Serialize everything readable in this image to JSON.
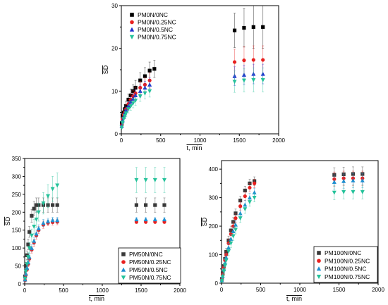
{
  "chart_data": [
    {
      "type": "scatter",
      "title": "",
      "xlabel": "t, min",
      "ylabel": "SD",
      "xlim": [
        0,
        2000
      ],
      "ylim": [
        0,
        30
      ],
      "xticks": [
        "0",
        "500",
        "1000",
        "1500",
        "2000"
      ],
      "yticks": [
        "0",
        "10",
        "20",
        "30"
      ],
      "error_bars": true,
      "legend_position": "top-left",
      "series": [
        {
          "name": "PM0N/0NC",
          "color": "#000000",
          "marker": "square",
          "x": [
            5,
            15,
            30,
            45,
            60,
            90,
            120,
            150,
            180,
            240,
            300,
            360,
            420,
            1440,
            1560,
            1680,
            1800
          ],
          "y": [
            2.5,
            4.2,
            5.0,
            5.8,
            6.5,
            8.0,
            9.0,
            10.0,
            10.8,
            12.5,
            13.5,
            14.8,
            15.2,
            24.2,
            24.8,
            25.0,
            25.0
          ],
          "err": [
            0.5,
            0.8,
            1.0,
            1.0,
            1.2,
            1.3,
            1.5,
            1.5,
            1.7,
            1.8,
            2.0,
            2.0,
            2.0,
            4.0,
            4.5,
            5.0,
            5.0
          ]
        },
        {
          "name": "PM0N/0.25NC",
          "color": "#e8201f",
          "marker": "circle",
          "x": [
            5,
            15,
            30,
            45,
            60,
            90,
            120,
            150,
            180,
            240,
            300,
            360,
            1440,
            1560,
            1680,
            1800
          ],
          "y": [
            2.0,
            3.5,
            4.5,
            5.0,
            5.8,
            7.0,
            8.0,
            8.8,
            9.5,
            10.8,
            11.5,
            12.5,
            16.8,
            17.2,
            17.3,
            17.3
          ],
          "err": [
            0.4,
            0.6,
            0.8,
            0.9,
            1.0,
            1.1,
            1.2,
            1.3,
            1.4,
            1.5,
            1.6,
            1.8,
            3.0,
            3.2,
            3.3,
            3.3
          ]
        },
        {
          "name": "PM0N/0.5NC",
          "color": "#1f2fd1",
          "marker": "triangle-up",
          "x": [
            5,
            15,
            30,
            45,
            60,
            90,
            120,
            150,
            180,
            240,
            300,
            360,
            1440,
            1560,
            1680,
            1800
          ],
          "y": [
            1.8,
            3.0,
            4.0,
            4.8,
            5.5,
            6.5,
            7.5,
            8.2,
            9.0,
            10.0,
            10.8,
            11.5,
            13.5,
            13.8,
            14.0,
            14.0
          ],
          "err": [
            0.4,
            0.6,
            0.7,
            0.8,
            0.9,
            1.0,
            1.1,
            1.2,
            1.3,
            1.4,
            1.5,
            1.6,
            2.2,
            2.3,
            2.3,
            2.3
          ]
        },
        {
          "name": "PM0N/0.75NC",
          "color": "#24c29a",
          "marker": "triangle-down",
          "x": [
            5,
            15,
            30,
            45,
            60,
            90,
            120,
            150,
            180,
            240,
            300,
            360,
            1440,
            1560,
            1680,
            1800
          ],
          "y": [
            1.5,
            2.6,
            3.5,
            4.2,
            4.8,
            5.8,
            6.5,
            7.2,
            7.8,
            8.8,
            9.5,
            10.0,
            12.2,
            12.5,
            12.6,
            12.6
          ],
          "err": [
            0.3,
            0.5,
            0.6,
            0.7,
            0.8,
            0.9,
            1.0,
            1.1,
            1.1,
            1.2,
            1.3,
            1.4,
            2.5,
            2.7,
            2.8,
            2.8
          ]
        }
      ]
    },
    {
      "type": "scatter",
      "title": "",
      "xlabel": "t, min",
      "ylabel": "SD",
      "xlim": [
        0,
        2000
      ],
      "ylim": [
        0,
        350
      ],
      "xticks": [
        "0",
        "500",
        "1000",
        "1500",
        "2000"
      ],
      "yticks": [
        "0",
        "50",
        "100",
        "150",
        "200",
        "250",
        "300",
        "350"
      ],
      "error_bars": true,
      "legend_position": "bottom-right",
      "series": [
        {
          "name": "PM50N/0NC",
          "color": "#3a3a3a",
          "marker": "square",
          "x": [
            5,
            15,
            30,
            45,
            60,
            90,
            120,
            150,
            180,
            240,
            300,
            360,
            420,
            1440,
            1560,
            1680,
            1800
          ],
          "y": [
            20,
            50,
            80,
            110,
            145,
            190,
            210,
            220,
            220,
            220,
            220,
            220,
            220,
            220,
            220,
            220,
            220
          ],
          "err": [
            5,
            10,
            12,
            15,
            15,
            18,
            20,
            20,
            20,
            20,
            20,
            20,
            20,
            20,
            20,
            20,
            20
          ]
        },
        {
          "name": "PM50N/0.25NC",
          "color": "#e8201f",
          "marker": "circle",
          "x": [
            5,
            15,
            30,
            45,
            60,
            90,
            120,
            150,
            180,
            240,
            300,
            360,
            420,
            1440,
            1560,
            1680,
            1800
          ],
          "y": [
            10,
            25,
            40,
            55,
            70,
            95,
            115,
            135,
            150,
            165,
            170,
            172,
            173,
            173,
            173,
            173,
            173
          ],
          "err": [
            3,
            5,
            6,
            7,
            8,
            9,
            10,
            10,
            10,
            10,
            8,
            8,
            8,
            5,
            5,
            5,
            5
          ]
        },
        {
          "name": "PM50N/0.5NC",
          "color": "#1f8fd1",
          "marker": "triangle-up",
          "x": [
            5,
            15,
            30,
            45,
            60,
            90,
            120,
            150,
            180,
            240,
            300,
            360,
            420,
            1440,
            1560,
            1680,
            1800
          ],
          "y": [
            12,
            28,
            45,
            60,
            75,
            100,
            120,
            140,
            155,
            170,
            175,
            178,
            178,
            180,
            180,
            180,
            180
          ],
          "err": [
            3,
            5,
            6,
            7,
            8,
            9,
            10,
            10,
            10,
            10,
            8,
            8,
            8,
            5,
            5,
            5,
            5
          ]
        },
        {
          "name": "PM50N/0.75NC",
          "color": "#24c29a",
          "marker": "triangle-down",
          "x": [
            5,
            15,
            30,
            45,
            60,
            90,
            120,
            150,
            180,
            240,
            300,
            360,
            420,
            1440,
            1560,
            1680,
            1800
          ],
          "y": [
            15,
            35,
            55,
            75,
            100,
            135,
            160,
            180,
            200,
            225,
            245,
            265,
            275,
            290,
            290,
            290,
            290
          ],
          "err": [
            5,
            8,
            10,
            12,
            15,
            18,
            20,
            22,
            25,
            30,
            32,
            35,
            35,
            35,
            35,
            35,
            35
          ]
        }
      ]
    },
    {
      "type": "scatter",
      "title": "",
      "xlabel": "t, min",
      "ylabel": "SD",
      "xlim": [
        0,
        2000
      ],
      "ylim": [
        0,
        430
      ],
      "xticks": [
        "0",
        "500",
        "1000",
        "1500",
        "2000"
      ],
      "yticks": [
        "0",
        "100",
        "200",
        "300",
        "400"
      ],
      "error_bars": true,
      "legend_position": "bottom-right",
      "series": [
        {
          "name": "PM100N/0NC",
          "color": "#3a3a3a",
          "marker": "square",
          "x": [
            5,
            15,
            30,
            45,
            60,
            90,
            120,
            150,
            180,
            240,
            300,
            360,
            420,
            1440,
            1560,
            1680,
            1800
          ],
          "y": [
            15,
            35,
            60,
            85,
            110,
            150,
            185,
            215,
            245,
            290,
            325,
            350,
            358,
            380,
            382,
            383,
            383
          ],
          "err": [
            5,
            8,
            10,
            12,
            12,
            15,
            15,
            15,
            15,
            15,
            15,
            15,
            15,
            25,
            25,
            25,
            25
          ]
        },
        {
          "name": "PM100N/0.25NC",
          "color": "#e8201f",
          "marker": "circle",
          "x": [
            5,
            15,
            30,
            45,
            60,
            90,
            120,
            150,
            180,
            240,
            300,
            360,
            420,
            1440,
            1560,
            1680,
            1800
          ],
          "y": [
            12,
            30,
            55,
            80,
            100,
            140,
            172,
            200,
            228,
            270,
            305,
            335,
            350,
            365,
            368,
            368,
            368
          ],
          "err": [
            5,
            8,
            10,
            12,
            12,
            15,
            15,
            15,
            15,
            15,
            15,
            15,
            15,
            25,
            25,
            25,
            25
          ]
        },
        {
          "name": "PM100N/0.5NC",
          "color": "#1f8fd1",
          "marker": "triangle-up",
          "x": [
            5,
            15,
            30,
            45,
            60,
            90,
            120,
            150,
            180,
            240,
            300,
            360,
            420,
            1440,
            1560,
            1680,
            1800
          ],
          "y": [
            10,
            25,
            48,
            70,
            90,
            125,
            155,
            182,
            205,
            245,
            275,
            300,
            318,
            355,
            358,
            360,
            360
          ],
          "err": [
            5,
            8,
            10,
            12,
            12,
            15,
            15,
            15,
            15,
            15,
            15,
            15,
            15,
            25,
            25,
            25,
            25
          ]
        },
        {
          "name": "PM100N/0.75NC",
          "color": "#24c29a",
          "marker": "triangle-down",
          "x": [
            5,
            15,
            30,
            45,
            60,
            90,
            120,
            150,
            180,
            240,
            300,
            360,
            420,
            1440,
            1560,
            1680,
            1800
          ],
          "y": [
            8,
            22,
            42,
            62,
            80,
            112,
            140,
            165,
            188,
            228,
            260,
            285,
            300,
            318,
            320,
            320,
            320
          ],
          "err": [
            5,
            8,
            10,
            12,
            12,
            15,
            15,
            15,
            15,
            15,
            15,
            15,
            15,
            25,
            25,
            25,
            25
          ]
        }
      ]
    }
  ]
}
